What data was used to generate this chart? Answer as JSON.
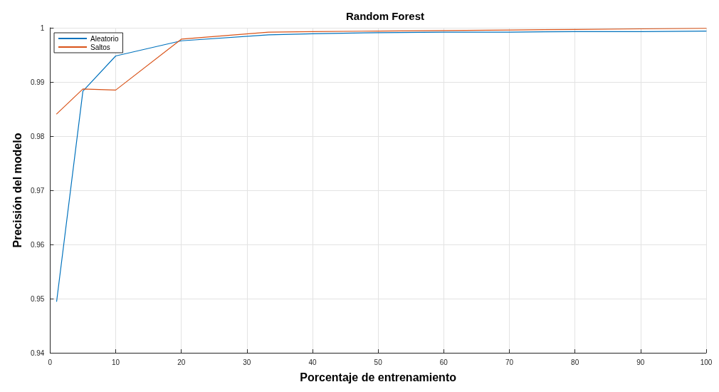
{
  "chart_data": {
    "type": "line",
    "title": "Random Forest",
    "xlabel": "Porcentaje de entrenamiento",
    "ylabel": "Precisión del modelo",
    "x": [
      1,
      5,
      10,
      20,
      33.3,
      40,
      50,
      60,
      70,
      80,
      90,
      100
    ],
    "series": [
      {
        "name": "Aleatorio",
        "color": "#0072bd",
        "values": [
          0.9495,
          0.9883,
          0.9948,
          0.9976,
          0.9987,
          0.9989,
          0.9991,
          0.9992,
          0.9992,
          0.9993,
          0.9993,
          0.9994
        ]
      },
      {
        "name": "Saltos",
        "color": "#d95319",
        "values": [
          0.9841,
          0.9887,
          0.9885,
          0.9979,
          0.9992,
          0.9993,
          0.9994,
          0.9995,
          0.9996,
          0.9997,
          0.9998,
          0.9999
        ]
      }
    ],
    "xlim": [
      0,
      100
    ],
    "xticks": [
      0,
      10,
      20,
      30,
      40,
      50,
      60,
      70,
      80,
      90,
      100
    ],
    "ylim": [
      0.94,
      1
    ],
    "yticks": [
      0.94,
      0.95,
      0.96,
      0.97,
      0.98,
      0.99,
      1
    ],
    "grid": true,
    "legend": "top left",
    "marker": "none",
    "line_style": "solid"
  }
}
